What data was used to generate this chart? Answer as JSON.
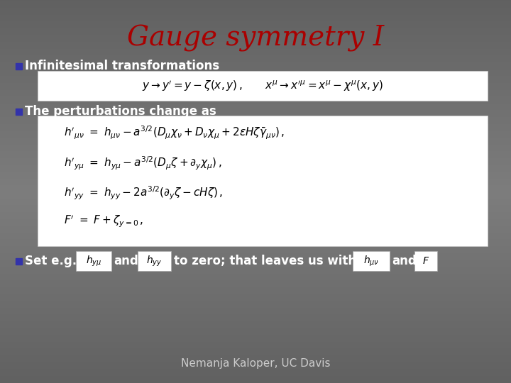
{
  "title": "Gauge symmetry I",
  "title_color": "#aa0000",
  "title_fontsize": 28,
  "bg_color_top": "#666666",
  "bg_color_bottom": "#888888",
  "bullet_color": "#3333aa",
  "bullet1_text": "Infinitesimal transformations",
  "bullet2_text": "The perturbations change as",
  "bullet3_text": "Set e.g.",
  "bullet3_mid1": "and",
  "bullet3_mid2": "to zero; that leaves us with",
  "bullet3_end": "and",
  "eq1": "$y \\rightarrow y' = y - \\zeta(x, y)\\,,\\qquad x^{\\mu} \\rightarrow x'^{\\mu} = x^{\\mu} - \\chi^{\\mu}(x, y)$",
  "eq2a": "$h'_{\\mu\\nu} \\ = \\ h_{\\mu\\nu} - a^{3/2}(D_{\\mu}\\chi_{\\nu} + D_{\\nu}\\chi_{\\mu} + 2\\epsilon H \\zeta \\bar{\\gamma}_{\\mu\\nu})\\,,$",
  "eq2b": "$h'_{y\\mu} \\ = \\ h_{y\\mu} - a^{3/2}(D_{\\mu}\\zeta + \\partial_y \\chi_{\\mu})\\,,$",
  "eq2c": "$h'_{yy} \\ = \\ h_{yy} - 2a^{3/2}(\\partial_y \\zeta - cH\\zeta)\\,,$",
  "eq2d": "$F' \\ = \\ F + \\zeta_{y=0}\\,,$",
  "eq3a": "$h_{y\\mu}$",
  "eq3b": "$h_{yy}$",
  "eq3c": "$h_{\\mu\\nu}$",
  "eq3d": "$F$",
  "footer": "Nemanja Kaloper, UC Davis",
  "footer_fontsize": 11,
  "bullet_text_fontsize": 12,
  "eq_fontsize": 11,
  "eq_small_fontsize": 10
}
